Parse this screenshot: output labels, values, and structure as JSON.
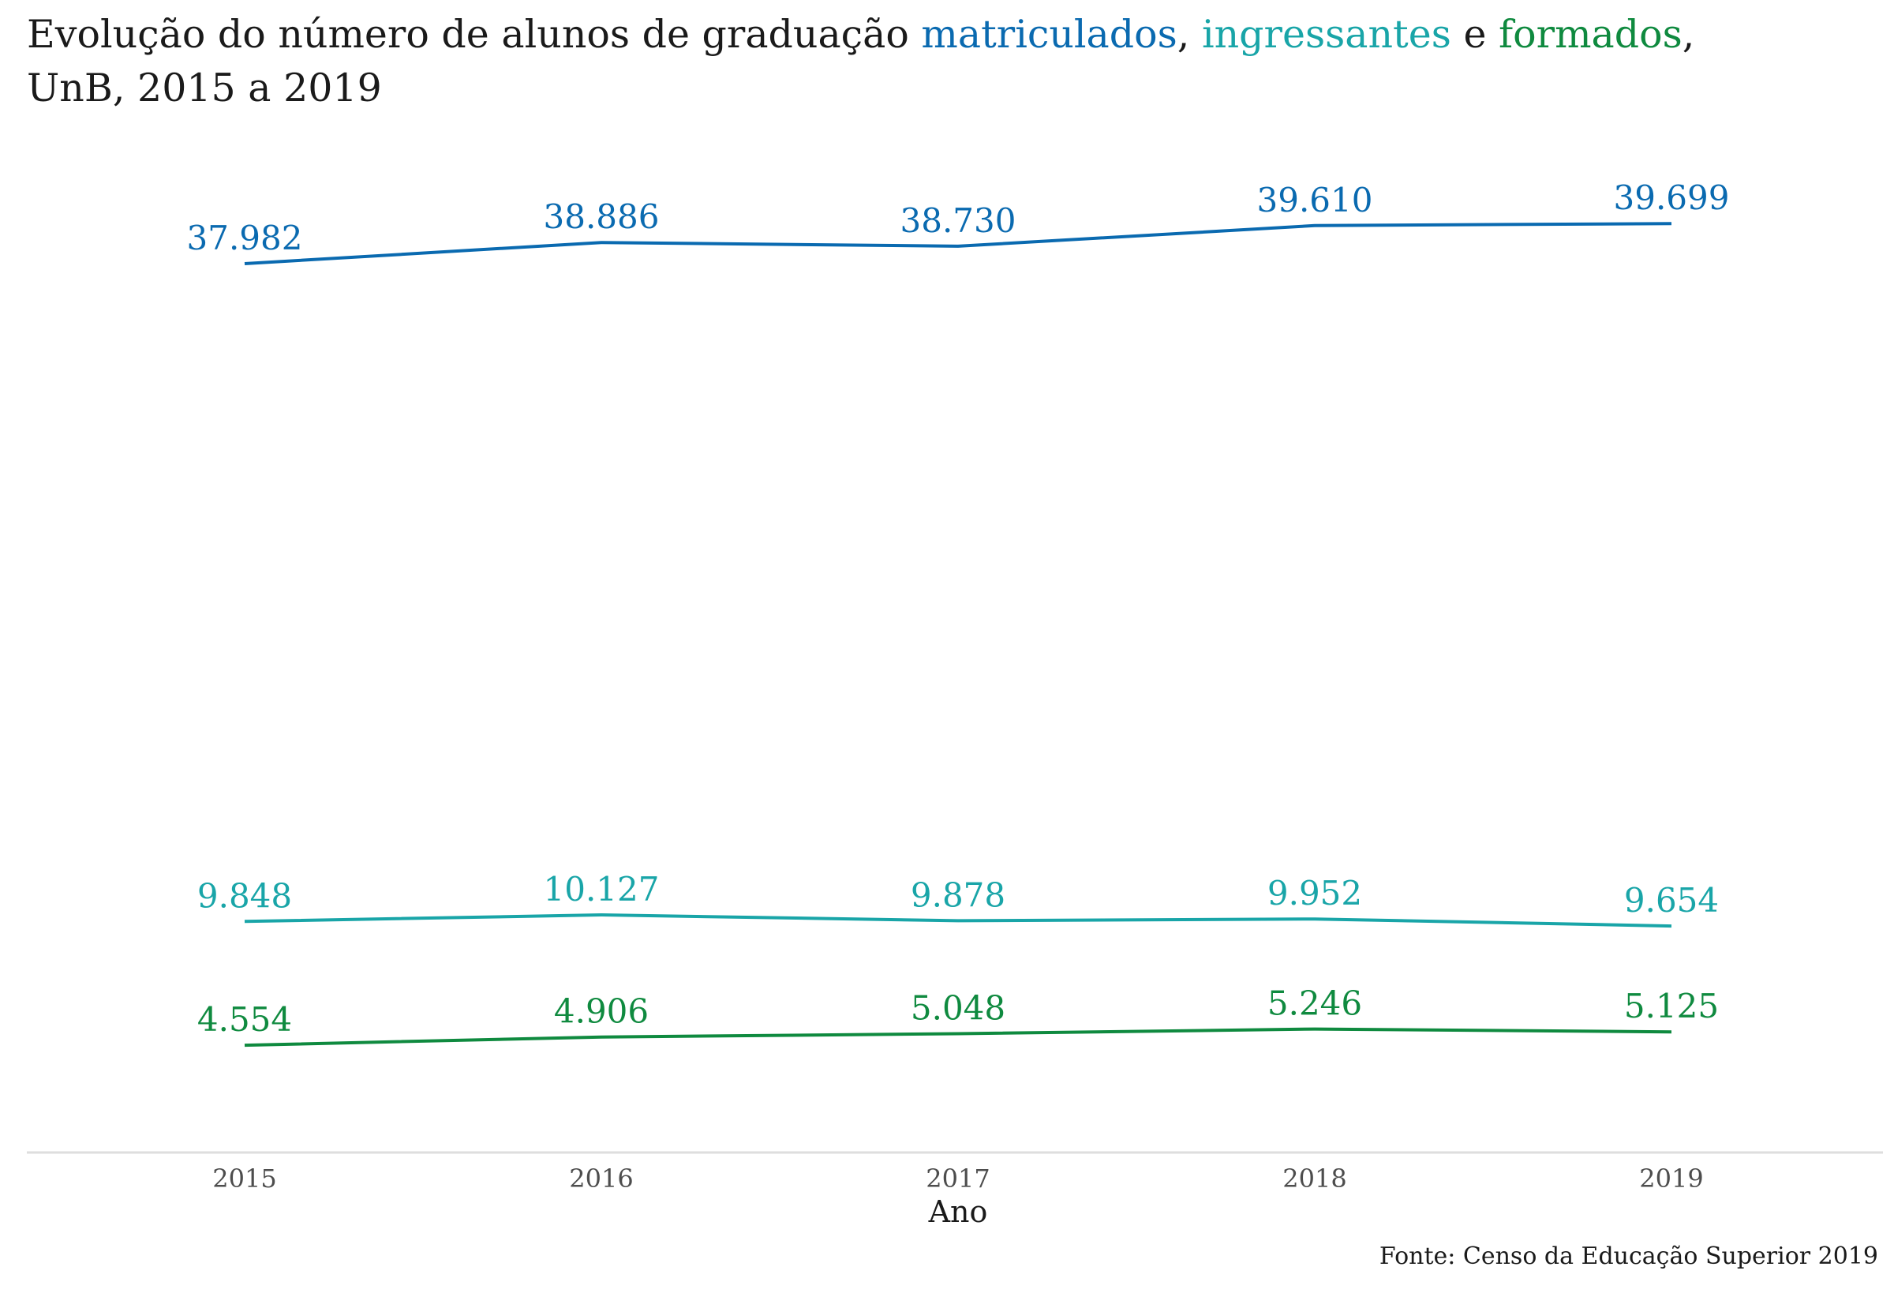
{
  "chart_data": {
    "type": "line",
    "title_parts": [
      {
        "text": "Evolução do número de alunos de graduação ",
        "series": null
      },
      {
        "text": "matriculados",
        "series": 0
      },
      {
        "text": ", ",
        "series": null
      },
      {
        "text": "ingressantes",
        "series": 1
      },
      {
        "text": " e ",
        "series": null
      },
      {
        "text": "formados",
        "series": 2
      },
      {
        "text": ",",
        "series": null
      }
    ],
    "subtitle": "UnB, 2015 a 2019",
    "xlabel": "Ano",
    "ylabel": "",
    "x": [
      "2015",
      "2016",
      "2017",
      "2018",
      "2019"
    ],
    "ylim": [
      0,
      42000
    ],
    "grid": false,
    "legend": "none",
    "series": [
      {
        "name": "matriculados",
        "color": "#0a6ab0",
        "values": [
          37982,
          38886,
          38730,
          39610,
          39699
        ],
        "labels": [
          "37.982",
          "38.886",
          "38.730",
          "39.610",
          "39.699"
        ]
      },
      {
        "name": "ingressantes",
        "color": "#19a5a8",
        "values": [
          9848,
          10127,
          9878,
          9952,
          9654
        ],
        "labels": [
          "9.848",
          "10.127",
          "9.878",
          "9.952",
          "9.654"
        ]
      },
      {
        "name": "formados",
        "color": "#0f8a3f",
        "values": [
          4554,
          4906,
          5048,
          5246,
          5125
        ],
        "labels": [
          "4.554",
          "4.906",
          "5.048",
          "5.246",
          "5.125"
        ]
      }
    ],
    "source": "Fonte: Censo da Educação Superior 2019"
  }
}
